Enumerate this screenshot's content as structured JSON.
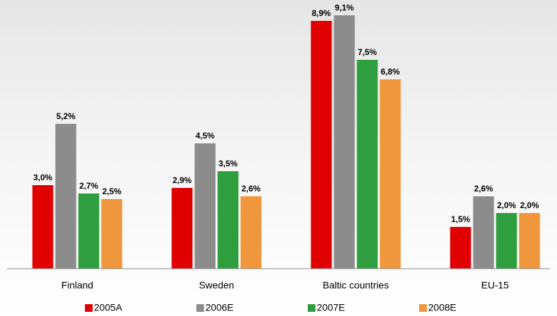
{
  "chart_data": {
    "type": "bar",
    "categories": [
      "Finland",
      "Sweden",
      "Baltic countries",
      "EU-15"
    ],
    "series": [
      {
        "name": "2005A",
        "color": "#e00000",
        "values": [
          3.0,
          2.9,
          8.9,
          1.5
        ],
        "value_labels": [
          "3,0%",
          "2,9%",
          "8,9%",
          "1,5%"
        ]
      },
      {
        "name": "2006E",
        "color": "#8c8c8c",
        "values": [
          5.2,
          4.5,
          9.1,
          2.6
        ],
        "value_labels": [
          "5,2%",
          "4,5%",
          "9,1%",
          "2,6%"
        ]
      },
      {
        "name": "2007E",
        "color": "#2e9e3e",
        "values": [
          2.7,
          3.5,
          7.5,
          2.0
        ],
        "value_labels": [
          "2,7%",
          "3,5%",
          "7,5%",
          "2,0%"
        ]
      },
      {
        "name": "2008E",
        "color": "#f0963c",
        "values": [
          2.5,
          2.6,
          6.8,
          2.0
        ],
        "value_labels": [
          "2,5%",
          "2,6%",
          "6,8%",
          "2,0%"
        ]
      }
    ],
    "ylim": [
      0,
      9.5
    ],
    "legend": "bottom"
  }
}
